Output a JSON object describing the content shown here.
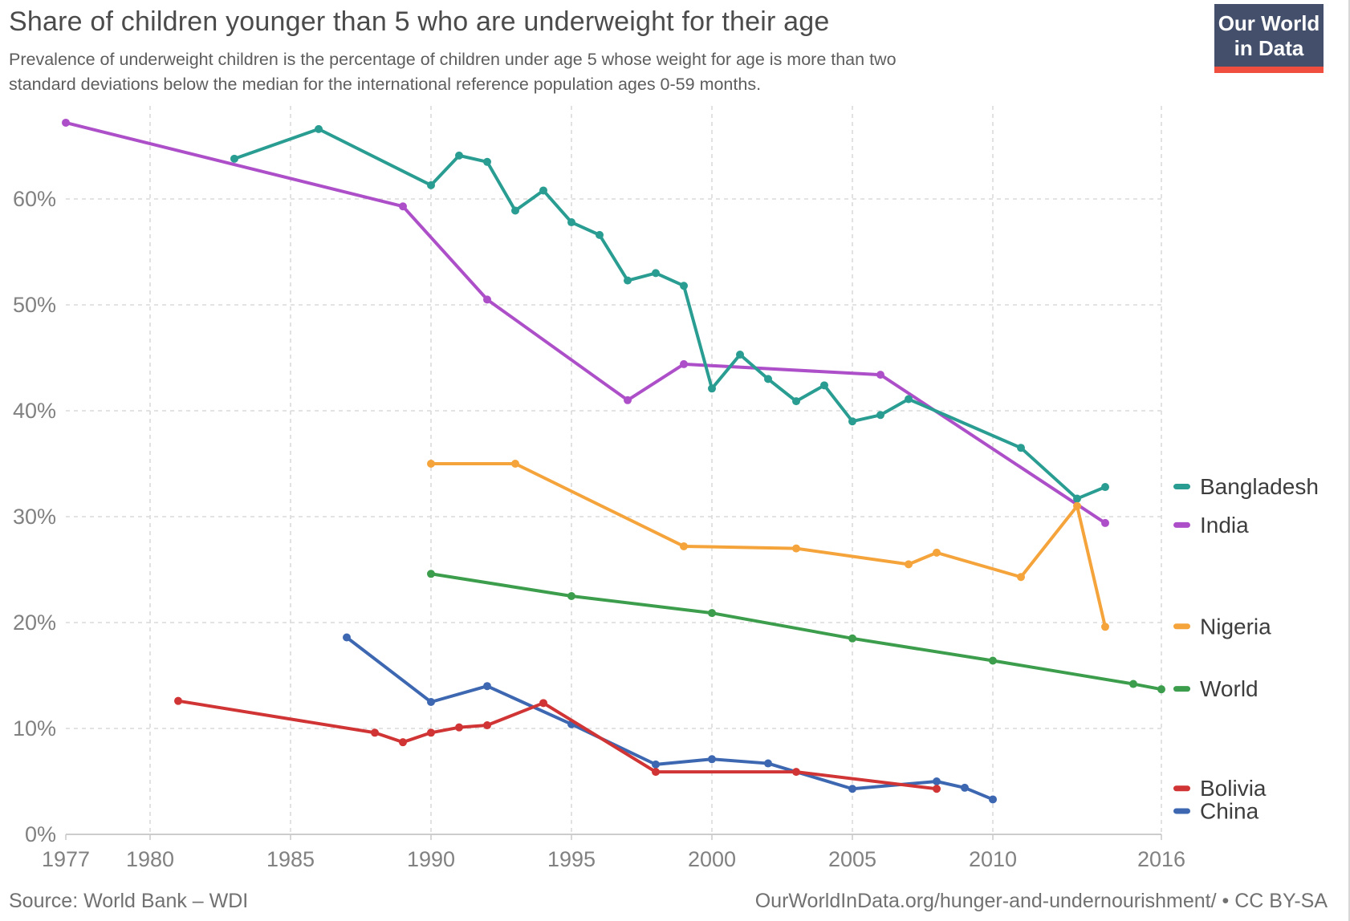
{
  "header": {
    "title": "Share of children younger than 5 who are underweight for their age",
    "subtitle_line1": "Prevalence of underweight children is the percentage of children under age 5 whose weight for age is more than two",
    "subtitle_line2": "standard deviations below the median for the international reference population ages 0-59 months.",
    "logo": {
      "line1": "Our World",
      "line2": "in Data",
      "bg_color": "#44506b",
      "accent_color": "#f04e3e"
    }
  },
  "chart_data": {
    "type": "line",
    "title": "Share of children younger than 5 who are underweight for their age",
    "xlabel": "",
    "ylabel": "",
    "x_range": [
      1977,
      2016
    ],
    "y_range": [
      0,
      67.5
    ],
    "grid": true,
    "legend_position": "right",
    "x_ticks": [
      {
        "label": "1977",
        "year": 1977
      },
      {
        "label": "1980",
        "year": 1980
      },
      {
        "label": "1985",
        "year": 1985
      },
      {
        "label": "1990",
        "year": 1990
      },
      {
        "label": "1995",
        "year": 1995
      },
      {
        "label": "2000",
        "year": 2000
      },
      {
        "label": "2005",
        "year": 2005
      },
      {
        "label": "2010",
        "year": 2010
      },
      {
        "label": "2016",
        "year": 2016
      }
    ],
    "y_ticks": [
      {
        "label": "0%",
        "value": 0
      },
      {
        "label": "10%",
        "value": 10
      },
      {
        "label": "20%",
        "value": 20
      },
      {
        "label": "30%",
        "value": 30
      },
      {
        "label": "40%",
        "value": 40
      },
      {
        "label": "50%",
        "value": 50
      },
      {
        "label": "60%",
        "value": 60
      }
    ],
    "series": [
      {
        "name": "Bangladesh",
        "color": "#2a9d92",
        "points": [
          [
            1983,
            63.8
          ],
          [
            1986,
            66.6
          ],
          [
            1990,
            61.3
          ],
          [
            1991,
            64.1
          ],
          [
            1992,
            63.5
          ],
          [
            1993,
            58.9
          ],
          [
            1994,
            60.8
          ],
          [
            1995,
            57.8
          ],
          [
            1996,
            56.6
          ],
          [
            1997,
            52.3
          ],
          [
            1998,
            53.0
          ],
          [
            1999,
            51.8
          ],
          [
            2000,
            42.1
          ],
          [
            2001,
            45.3
          ],
          [
            2002,
            43.0
          ],
          [
            2003,
            40.9
          ],
          [
            2004,
            42.4
          ],
          [
            2005,
            39.0
          ],
          [
            2006,
            39.6
          ],
          [
            2007,
            41.1
          ],
          [
            2011,
            36.5
          ],
          [
            2013,
            31.7
          ],
          [
            2014,
            32.8
          ]
        ]
      },
      {
        "name": "India",
        "color": "#ad4fc8",
        "points": [
          [
            1977,
            67.2
          ],
          [
            1989,
            59.3
          ],
          [
            1992,
            50.5
          ],
          [
            1997,
            41.0
          ],
          [
            1999,
            44.4
          ],
          [
            2006,
            43.4
          ],
          [
            2014,
            29.4
          ]
        ]
      },
      {
        "name": "Nigeria",
        "color": "#f5a43b",
        "points": [
          [
            1990,
            35.0
          ],
          [
            1993,
            35.0
          ],
          [
            1999,
            27.2
          ],
          [
            2003,
            27.0
          ],
          [
            2007,
            25.5
          ],
          [
            2008,
            26.6
          ],
          [
            2011,
            24.3
          ],
          [
            2013,
            31.0
          ],
          [
            2014,
            19.6
          ]
        ]
      },
      {
        "name": "World",
        "color": "#3c9e4c",
        "points": [
          [
            1990,
            24.6
          ],
          [
            1995,
            22.5
          ],
          [
            2000,
            20.9
          ],
          [
            2005,
            18.5
          ],
          [
            2010,
            16.4
          ],
          [
            2015,
            14.2
          ],
          [
            2016,
            13.7
          ]
        ]
      },
      {
        "name": "Bolivia",
        "color": "#d13434",
        "points": [
          [
            1981,
            12.6
          ],
          [
            1988,
            9.6
          ],
          [
            1989,
            8.7
          ],
          [
            1990,
            9.6
          ],
          [
            1991,
            10.1
          ],
          [
            1992,
            10.3
          ],
          [
            1994,
            12.4
          ],
          [
            1998,
            5.9
          ],
          [
            2003,
            5.9
          ],
          [
            2008,
            4.3
          ]
        ]
      },
      {
        "name": "China",
        "color": "#3d68b1",
        "points": [
          [
            1987,
            18.6
          ],
          [
            1990,
            12.5
          ],
          [
            1992,
            14.0
          ],
          [
            1995,
            10.4
          ],
          [
            1998,
            6.6
          ],
          [
            2000,
            7.1
          ],
          [
            2002,
            6.7
          ],
          [
            2005,
            4.3
          ],
          [
            2008,
            5.0
          ],
          [
            2009,
            4.4
          ],
          [
            2010,
            3.3
          ]
        ]
      }
    ]
  },
  "footer": {
    "source": "Source: World Bank – WDI",
    "credit": "OurWorldInData.org/hunger-and-undernourishment/ • CC BY-SA"
  }
}
